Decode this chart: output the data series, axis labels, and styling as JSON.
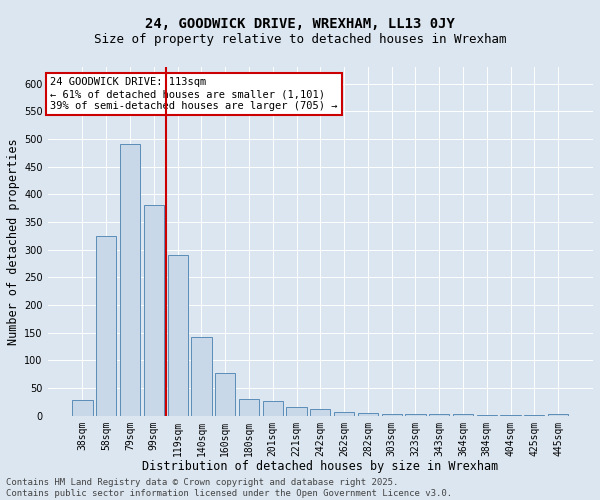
{
  "title": "24, GOODWICK DRIVE, WREXHAM, LL13 0JY",
  "subtitle": "Size of property relative to detached houses in Wrexham",
  "xlabel": "Distribution of detached houses by size in Wrexham",
  "ylabel": "Number of detached properties",
  "categories": [
    "38sqm",
    "58sqm",
    "79sqm",
    "99sqm",
    "119sqm",
    "140sqm",
    "160sqm",
    "180sqm",
    "201sqm",
    "221sqm",
    "242sqm",
    "262sqm",
    "282sqm",
    "303sqm",
    "323sqm",
    "343sqm",
    "364sqm",
    "384sqm",
    "404sqm",
    "425sqm",
    "445sqm"
  ],
  "values": [
    29,
    325,
    490,
    380,
    290,
    143,
    78,
    30,
    27,
    15,
    13,
    7,
    5,
    3,
    3,
    3,
    3,
    2,
    2,
    2,
    3
  ],
  "bar_color": "#c8d8e8",
  "bar_edge_color": "#5b8db8",
  "vline_index": 3.5,
  "vline_color": "#cc0000",
  "annotation_text": "24 GOODWICK DRIVE: 113sqm\n← 61% of detached houses are smaller (1,101)\n39% of semi-detached houses are larger (705) →",
  "annotation_box_color": "#ffffff",
  "annotation_box_edge": "#cc0000",
  "ylim": [
    0,
    630
  ],
  "yticks": [
    0,
    50,
    100,
    150,
    200,
    250,
    300,
    350,
    400,
    450,
    500,
    550,
    600
  ],
  "background_color": "#dce6f0",
  "plot_bg_color": "#dce6f0",
  "footer": "Contains HM Land Registry data © Crown copyright and database right 2025.\nContains public sector information licensed under the Open Government Licence v3.0.",
  "title_fontsize": 10,
  "subtitle_fontsize": 9,
  "xlabel_fontsize": 8.5,
  "ylabel_fontsize": 8.5,
  "tick_fontsize": 7,
  "annotation_fontsize": 7.5,
  "footer_fontsize": 6.5
}
